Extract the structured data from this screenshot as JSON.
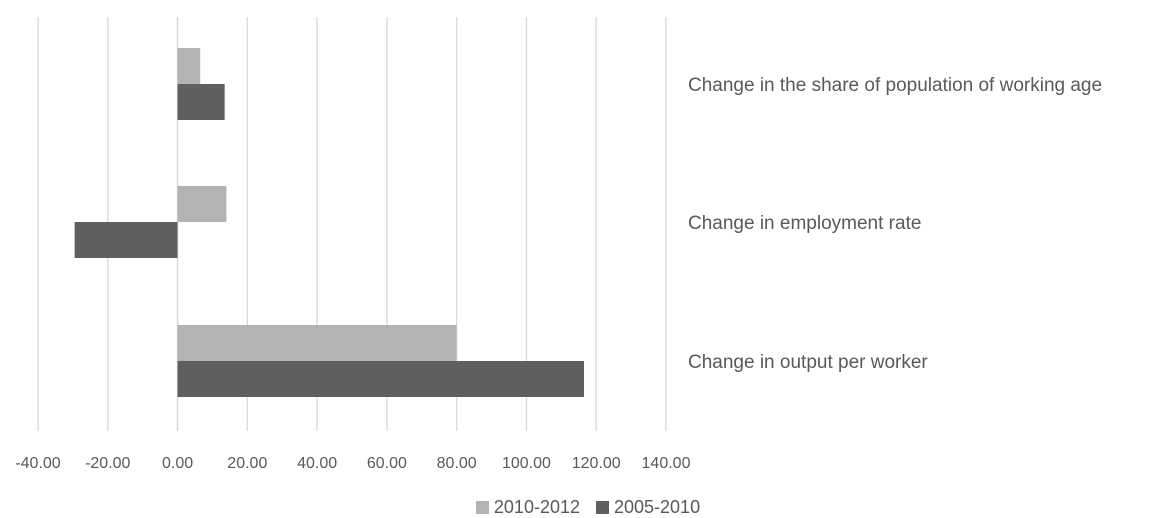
{
  "chart_data": {
    "type": "bar",
    "orientation": "horizontal",
    "categories": [
      "Change in the share of population of working age",
      "Change in employment rate",
      "Change in output per worker"
    ],
    "series": [
      {
        "name": "2010-2012",
        "color": "#b3b3b3",
        "values": [
          6.5,
          14.0,
          80.0
        ]
      },
      {
        "name": "2005-2010",
        "color": "#5f5f5f",
        "values": [
          13.5,
          -29.5,
          116.5
        ]
      }
    ],
    "x_ticks": [
      "-40.00",
      "-20.00",
      "0.00",
      "20.00",
      "40.00",
      "60.00",
      "80.00",
      "100.00",
      "120.00",
      "140.00"
    ],
    "xlim": [
      -40,
      140
    ],
    "gridlines": "vertical",
    "legend_position": "bottom"
  }
}
